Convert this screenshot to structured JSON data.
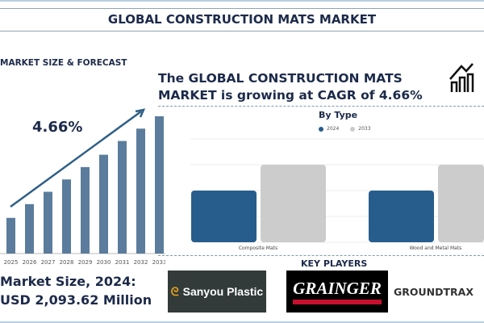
{
  "title": "GLOBAL CONSTRUCTION MATS MARKET",
  "left": {
    "section_label": "MARKET SIZE & FORECAST",
    "cagr": "4.66%",
    "market_size_line1": "Market Size, 2024:",
    "market_size_line2": "USD 2,093.62 Million"
  },
  "headline": "The GLOBAL CONSTRUCTION MATS MARKET is growing at CAGR of 4.66%",
  "key_players": {
    "label": "KEY PLAYERS",
    "logos": [
      "Sanyou Plastic",
      "GRAINGER",
      "GROUNDTRAX"
    ]
  },
  "colors": {
    "title": "#1c2a4a",
    "forecast_bar": "#5b7c9c",
    "series_2024": "#275d8c",
    "series_2033": "#cccccc",
    "grainger_red": "#c8102e"
  },
  "chart_data": [
    {
      "type": "bar",
      "title": "",
      "categories": [
        "2025",
        "2026",
        "2027",
        "2028",
        "2029",
        "2030",
        "2031",
        "2032",
        "2033"
      ],
      "values": [
        26,
        36,
        45,
        54,
        63,
        72,
        82,
        91,
        100
      ],
      "value_note_visible": false,
      "trend_arrow": true,
      "grid": false
    },
    {
      "type": "bar",
      "title": "By Type",
      "categories": [
        "Composite Mats",
        "Wood and Metal Mats"
      ],
      "series": [
        {
          "name": "2024",
          "values": [
            2,
            2
          ]
        },
        {
          "name": "2033",
          "values": [
            3,
            3
          ]
        }
      ],
      "ylim": [
        0,
        4
      ],
      "grid": true,
      "legend": "top"
    }
  ]
}
